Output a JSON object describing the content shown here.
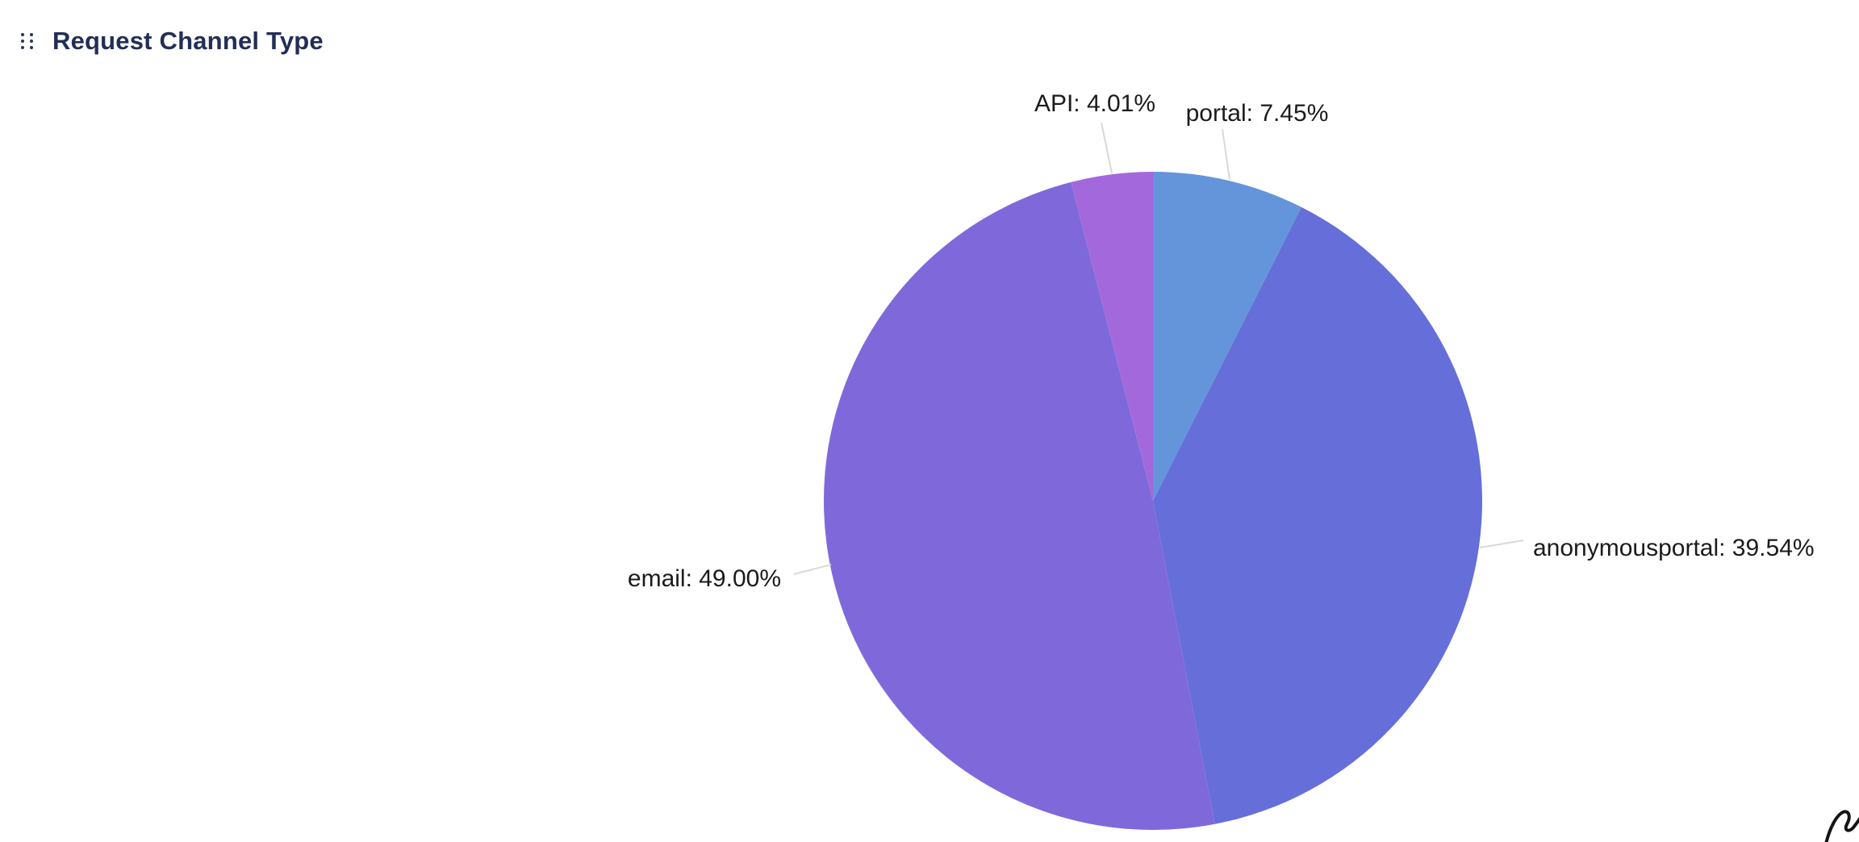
{
  "widget": {
    "title": "Request Channel Type"
  },
  "icons": {
    "drag_handle": "six-dots-grip",
    "corner_mark": "scribble"
  },
  "colors": {
    "title_text": "#222e55",
    "label_text": "#1b1b1b",
    "label_line": "#d9d9d9",
    "background": "#ffffff"
  },
  "chart_data": {
    "type": "pie",
    "title": "Request Channel Type",
    "start_at": "top",
    "direction": "clockwise",
    "legend": "none",
    "series": [
      {
        "name": "portal",
        "value": 7.45,
        "percent_label": "portal: 7.45%",
        "color": "#6495db"
      },
      {
        "name": "anonymousportal",
        "value": 39.54,
        "percent_label": "anonymousportal: 39.54%",
        "color": "#666ed9"
      },
      {
        "name": "email",
        "value": 49.0,
        "percent_label": "email: 49.00%",
        "color": "#7f69da"
      },
      {
        "name": "API",
        "value": 4.01,
        "percent_label": "API: 4.01%",
        "color": "#a369dc"
      }
    ]
  }
}
